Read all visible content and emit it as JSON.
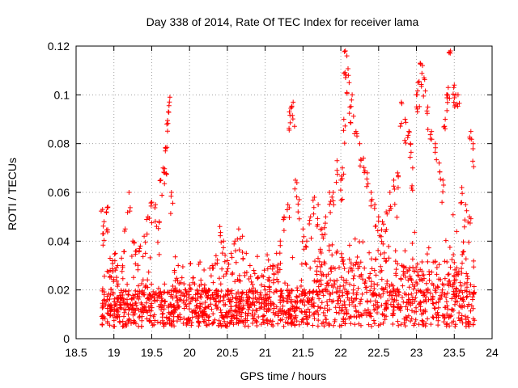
{
  "chart_data": {
    "type": "scatter",
    "title": "Day 338 of 2014, Rate Of TEC Index for receiver lama",
    "xlabel": "GPS time / hours",
    "ylabel": "ROTI / TECUs",
    "xlim": [
      18.5,
      24
    ],
    "ylim": [
      0,
      0.12
    ],
    "x_ticks": [
      "18.5",
      "19",
      "19.5",
      "20",
      "20.5",
      "21",
      "21.5",
      "22",
      "22.5",
      "23",
      "23.5",
      "24"
    ],
    "y_ticks": [
      "0",
      "0.02",
      "0.04",
      "0.06",
      "0.08",
      "0.1",
      "0.12"
    ],
    "grid": true,
    "marker": "+",
    "color": "#ff0000",
    "x_data_range": [
      18.83,
      23.77
    ],
    "baseline_band": [
      0.005,
      0.02
    ],
    "series": [
      {
        "name": "ROTI",
        "x": [
          18.85,
          18.87,
          18.9,
          18.92,
          18.95,
          18.98,
          19.02,
          19.05,
          19.1,
          19.15,
          19.2,
          19.25,
          19.3,
          19.35,
          19.4,
          19.45,
          19.5,
          19.55,
          19.6,
          19.62,
          19.65,
          19.68,
          19.7,
          19.72,
          19.74,
          19.76,
          19.8,
          19.85,
          19.9,
          19.95,
          20.0,
          20.05,
          20.1,
          20.15,
          20.2,
          20.25,
          20.3,
          20.35,
          20.4,
          20.45,
          20.5,
          20.55,
          20.6,
          20.65,
          20.7,
          20.75,
          20.8,
          20.85,
          20.9,
          20.95,
          21.0,
          21.05,
          21.1,
          21.15,
          21.2,
          21.25,
          21.3,
          21.32,
          21.35,
          21.37,
          21.4,
          21.45,
          21.5,
          21.55,
          21.6,
          21.65,
          21.7,
          21.75,
          21.8,
          21.85,
          21.9,
          21.95,
          22.0,
          22.02,
          22.04,
          22.06,
          22.08,
          22.1,
          22.12,
          22.15,
          22.2,
          22.25,
          22.3,
          22.35,
          22.4,
          22.45,
          22.5,
          22.55,
          22.6,
          22.65,
          22.7,
          22.75,
          22.8,
          22.85,
          22.9,
          22.92,
          22.95,
          23.0,
          23.02,
          23.05,
          23.08,
          23.1,
          23.15,
          23.2,
          23.25,
          23.3,
          23.35,
          23.38,
          23.4,
          23.42,
          23.45,
          23.5,
          23.52,
          23.55,
          23.6,
          23.65,
          23.7,
          23.72,
          23.75
        ],
        "y": [
          0.053,
          0.048,
          0.052,
          0.054,
          0.028,
          0.032,
          0.035,
          0.03,
          0.033,
          0.045,
          0.06,
          0.04,
          0.036,
          0.038,
          0.042,
          0.05,
          0.056,
          0.055,
          0.048,
          0.065,
          0.07,
          0.077,
          0.088,
          0.093,
          0.099,
          0.06,
          0.028,
          0.03,
          0.025,
          0.02,
          0.022,
          0.025,
          0.02,
          0.024,
          0.022,
          0.02,
          0.03,
          0.034,
          0.046,
          0.04,
          0.032,
          0.035,
          0.04,
          0.045,
          0.042,
          0.035,
          0.03,
          0.028,
          0.025,
          0.022,
          0.02,
          0.025,
          0.03,
          0.035,
          0.04,
          0.05,
          0.055,
          0.093,
          0.095,
          0.097,
          0.065,
          0.057,
          0.045,
          0.04,
          0.05,
          0.058,
          0.055,
          0.045,
          0.05,
          0.06,
          0.06,
          0.073,
          0.065,
          0.07,
          0.09,
          0.118,
          0.116,
          0.108,
          0.095,
          0.1,
          0.085,
          0.08,
          0.074,
          0.068,
          0.06,
          0.055,
          0.05,
          0.048,
          0.052,
          0.06,
          0.065,
          0.068,
          0.097,
          0.09,
          0.085,
          0.08,
          0.07,
          0.1,
          0.105,
          0.113,
          0.112,
          0.107,
          0.095,
          0.085,
          0.08,
          0.072,
          0.065,
          0.09,
          0.1,
          0.103,
          0.118,
          0.104,
          0.1,
          0.1,
          0.062,
          0.055,
          0.05,
          0.085,
          0.08
        ]
      }
    ]
  }
}
